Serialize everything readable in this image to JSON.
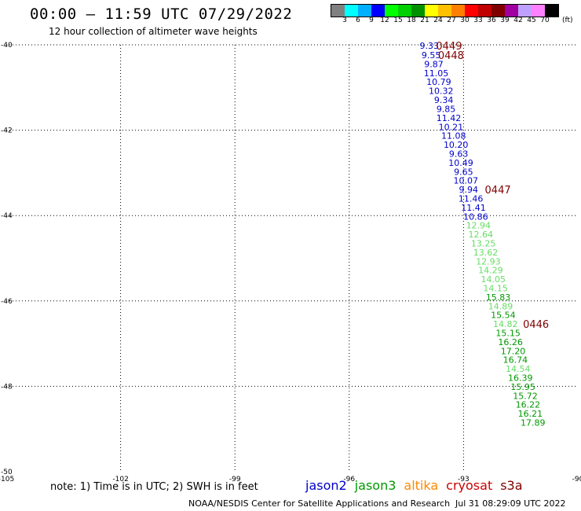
{
  "header": {
    "title": "00:00 – 11:59 UTC 07/29/2022",
    "subtitle": "12 hour collection of altimeter wave heights"
  },
  "colorbar": {
    "colors": [
      "#808080",
      "#00ffff",
      "#00b0ff",
      "#0000ff",
      "#00ff00",
      "#00d000",
      "#009000",
      "#ffff00",
      "#ffc000",
      "#ff8000",
      "#ff0000",
      "#c00000",
      "#800000",
      "#a000a0",
      "#c0a0ff",
      "#ff80ff",
      "#000000"
    ],
    "labels": [
      "3",
      "6",
      "9",
      "12",
      "15",
      "18",
      "21",
      "24",
      "27",
      "30",
      "33",
      "36",
      "39",
      "42",
      "45",
      "70"
    ],
    "unit": "(ft)"
  },
  "chart_data": {
    "type": "scatter",
    "xlim": [
      -105,
      -90
    ],
    "ylim": [
      -50,
      -40
    ],
    "x_ticks": [
      "-105",
      "-102",
      "-99",
      "-96",
      "-93",
      "-90"
    ],
    "y_ticks": [
      "-40",
      "-42",
      "-44",
      "-46",
      "-48",
      "-50"
    ],
    "grid": true,
    "series": [
      {
        "name": "jason2",
        "color": "#0000cc",
        "points": [
          {
            "lon": -93.9,
            "lat": -40.02,
            "text": "9.33"
          },
          {
            "lon": -93.85,
            "lat": -40.24,
            "text": "9.55"
          },
          {
            "lon": -93.78,
            "lat": -40.45,
            "text": "9.87"
          },
          {
            "lon": -93.72,
            "lat": -40.66,
            "text": "11.05"
          },
          {
            "lon": -93.65,
            "lat": -40.87,
            "text": "10.79"
          },
          {
            "lon": -93.59,
            "lat": -41.08,
            "text": "10.32"
          },
          {
            "lon": -93.52,
            "lat": -41.29,
            "text": "9.34"
          },
          {
            "lon": -93.46,
            "lat": -41.5,
            "text": "9.85"
          },
          {
            "lon": -93.39,
            "lat": -41.71,
            "text": "11.42"
          },
          {
            "lon": -93.33,
            "lat": -41.92,
            "text": "10.21"
          },
          {
            "lon": -93.26,
            "lat": -42.13,
            "text": "11.08"
          },
          {
            "lon": -93.2,
            "lat": -42.34,
            "text": "10.20"
          },
          {
            "lon": -93.13,
            "lat": -42.55,
            "text": "9.63"
          },
          {
            "lon": -93.07,
            "lat": -42.76,
            "text": "10.49"
          },
          {
            "lon": -93.0,
            "lat": -42.97,
            "text": "9.65"
          },
          {
            "lon": -92.94,
            "lat": -43.18,
            "text": "10.07"
          },
          {
            "lon": -92.87,
            "lat": -43.39,
            "text": "9.94"
          },
          {
            "lon": -92.81,
            "lat": -43.6,
            "text": "11.46"
          },
          {
            "lon": -92.74,
            "lat": -43.81,
            "text": "11.41"
          },
          {
            "lon": -92.68,
            "lat": -44.02,
            "text": "10.86"
          }
        ]
      },
      {
        "name": "jason3",
        "color": "#009900",
        "light_color": "#66dd66",
        "points": [
          {
            "lon": -92.61,
            "lat": -44.23,
            "text": "12.94",
            "light": true
          },
          {
            "lon": -92.55,
            "lat": -44.44,
            "text": "12.64",
            "light": true
          },
          {
            "lon": -92.48,
            "lat": -44.65,
            "text": "13.25",
            "light": true
          },
          {
            "lon": -92.42,
            "lat": -44.86,
            "text": "13.62",
            "light": true
          },
          {
            "lon": -92.35,
            "lat": -45.07,
            "text": "12.93",
            "light": true
          },
          {
            "lon": -92.29,
            "lat": -45.28,
            "text": "14.29",
            "light": true
          },
          {
            "lon": -92.22,
            "lat": -45.49,
            "text": "14.05",
            "light": true
          },
          {
            "lon": -92.16,
            "lat": -45.7,
            "text": "14.15",
            "light": true
          },
          {
            "lon": -92.09,
            "lat": -45.91,
            "text": "15.83",
            "light": false
          },
          {
            "lon": -92.03,
            "lat": -46.12,
            "text": "14.89",
            "light": true
          },
          {
            "lon": -91.96,
            "lat": -46.33,
            "text": "15.54",
            "light": false
          },
          {
            "lon": -91.9,
            "lat": -46.54,
            "text": "14.82",
            "light": true
          },
          {
            "lon": -91.83,
            "lat": -46.75,
            "text": "15.15",
            "light": false
          },
          {
            "lon": -91.77,
            "lat": -46.96,
            "text": "16.26",
            "light": false
          },
          {
            "lon": -91.7,
            "lat": -47.17,
            "text": "17.20",
            "light": false
          },
          {
            "lon": -91.64,
            "lat": -47.38,
            "text": "16.74",
            "light": false
          },
          {
            "lon": -91.57,
            "lat": -47.59,
            "text": "14.54",
            "light": true
          },
          {
            "lon": -91.51,
            "lat": -47.8,
            "text": "16.39",
            "light": false
          },
          {
            "lon": -91.44,
            "lat": -48.01,
            "text": "15.95",
            "light": false
          },
          {
            "lon": -91.38,
            "lat": -48.22,
            "text": "15.72",
            "light": false
          },
          {
            "lon": -91.31,
            "lat": -48.43,
            "text": "16.22",
            "light": false
          },
          {
            "lon": -91.25,
            "lat": -48.64,
            "text": "16.21",
            "light": false
          },
          {
            "lon": -91.18,
            "lat": -48.85,
            "text": "17.89",
            "light": false
          }
        ]
      }
    ],
    "time_labels": [
      {
        "lon": -93.38,
        "lat": -40.02,
        "text": "0449"
      },
      {
        "lon": -93.33,
        "lat": -40.24,
        "text": "0448"
      },
      {
        "lon": -92.1,
        "lat": -43.39,
        "text": "0447"
      },
      {
        "lon": -91.1,
        "lat": -46.54,
        "text": "0446"
      }
    ],
    "time_color": "#800000"
  },
  "note": "note: 1) Time is in UTC; 2) SWH is in feet",
  "legend": [
    {
      "name": "jason2",
      "color": "#0000cc"
    },
    {
      "name": "jason3",
      "color": "#009900"
    },
    {
      "name": "altika",
      "color": "#ff8800"
    },
    {
      "name": "cryosat",
      "color": "#cc0000"
    },
    {
      "name": "s3a",
      "color": "#800000"
    }
  ],
  "footer": {
    "credit": "NOAA/NESDIS Center for Satellite Applications and Research",
    "timestamp": "Jul 31 08:29:09 UTC 2022"
  }
}
